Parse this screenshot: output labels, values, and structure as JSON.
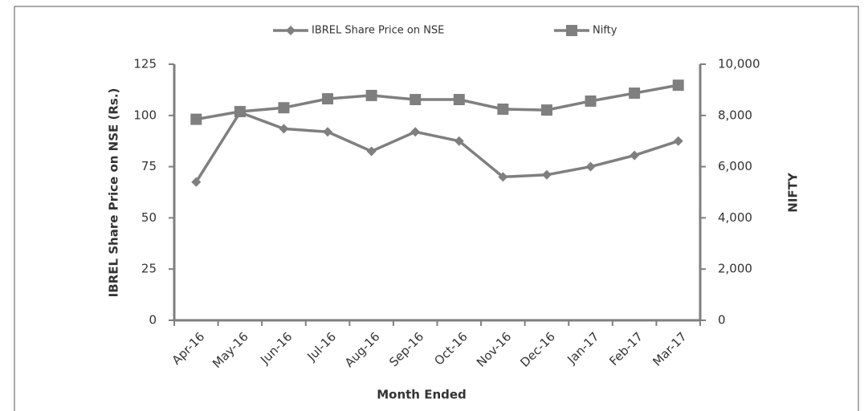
{
  "chart_data": {
    "type": "line",
    "xlabel": "Month Ended",
    "ylabel": "IBREL Share Price on NSE (Rs.)",
    "y2label": "NIFTY",
    "categories": [
      "Apr-16",
      "May-16",
      "Jun-16",
      "Jul-16",
      "Aug-16",
      "Sep-16",
      "Oct-16",
      "Nov-16",
      "Dec-16",
      "Jan-17",
      "Feb-17",
      "Mar-17"
    ],
    "series": [
      {
        "name": "IBREL Share Price on NSE",
        "color": "#7f7f7f",
        "marker": "diamond",
        "values": [
          67.5,
          101.5,
          93.5,
          92,
          82.5,
          92,
          87.5,
          70,
          71,
          75,
          80.5,
          87.5
        ]
      },
      {
        "name": "Nifty",
        "color": "#7f7f7f",
        "marker": "square",
        "axis": "y2",
        "values": [
          7850,
          8150,
          8300,
          8650,
          8780,
          8620,
          8620,
          8245,
          8210,
          8560,
          8870,
          9180
        ]
      }
    ],
    "ylim": [
      0,
      125
    ],
    "yticks": [
      0,
      25,
      50,
      75,
      100,
      125
    ],
    "y2lim": [
      0,
      10000
    ],
    "y2ticks": [
      0,
      {
        "value": 2000,
        "label": "2,000"
      },
      {
        "value": 4000,
        "label": "4,000"
      },
      {
        "value": 6000,
        "label": "6,000"
      },
      {
        "value": 8000,
        "label": "8,000"
      },
      {
        "value": 10000,
        "label": "10,000"
      }
    ],
    "grid": false,
    "legend": "top"
  }
}
